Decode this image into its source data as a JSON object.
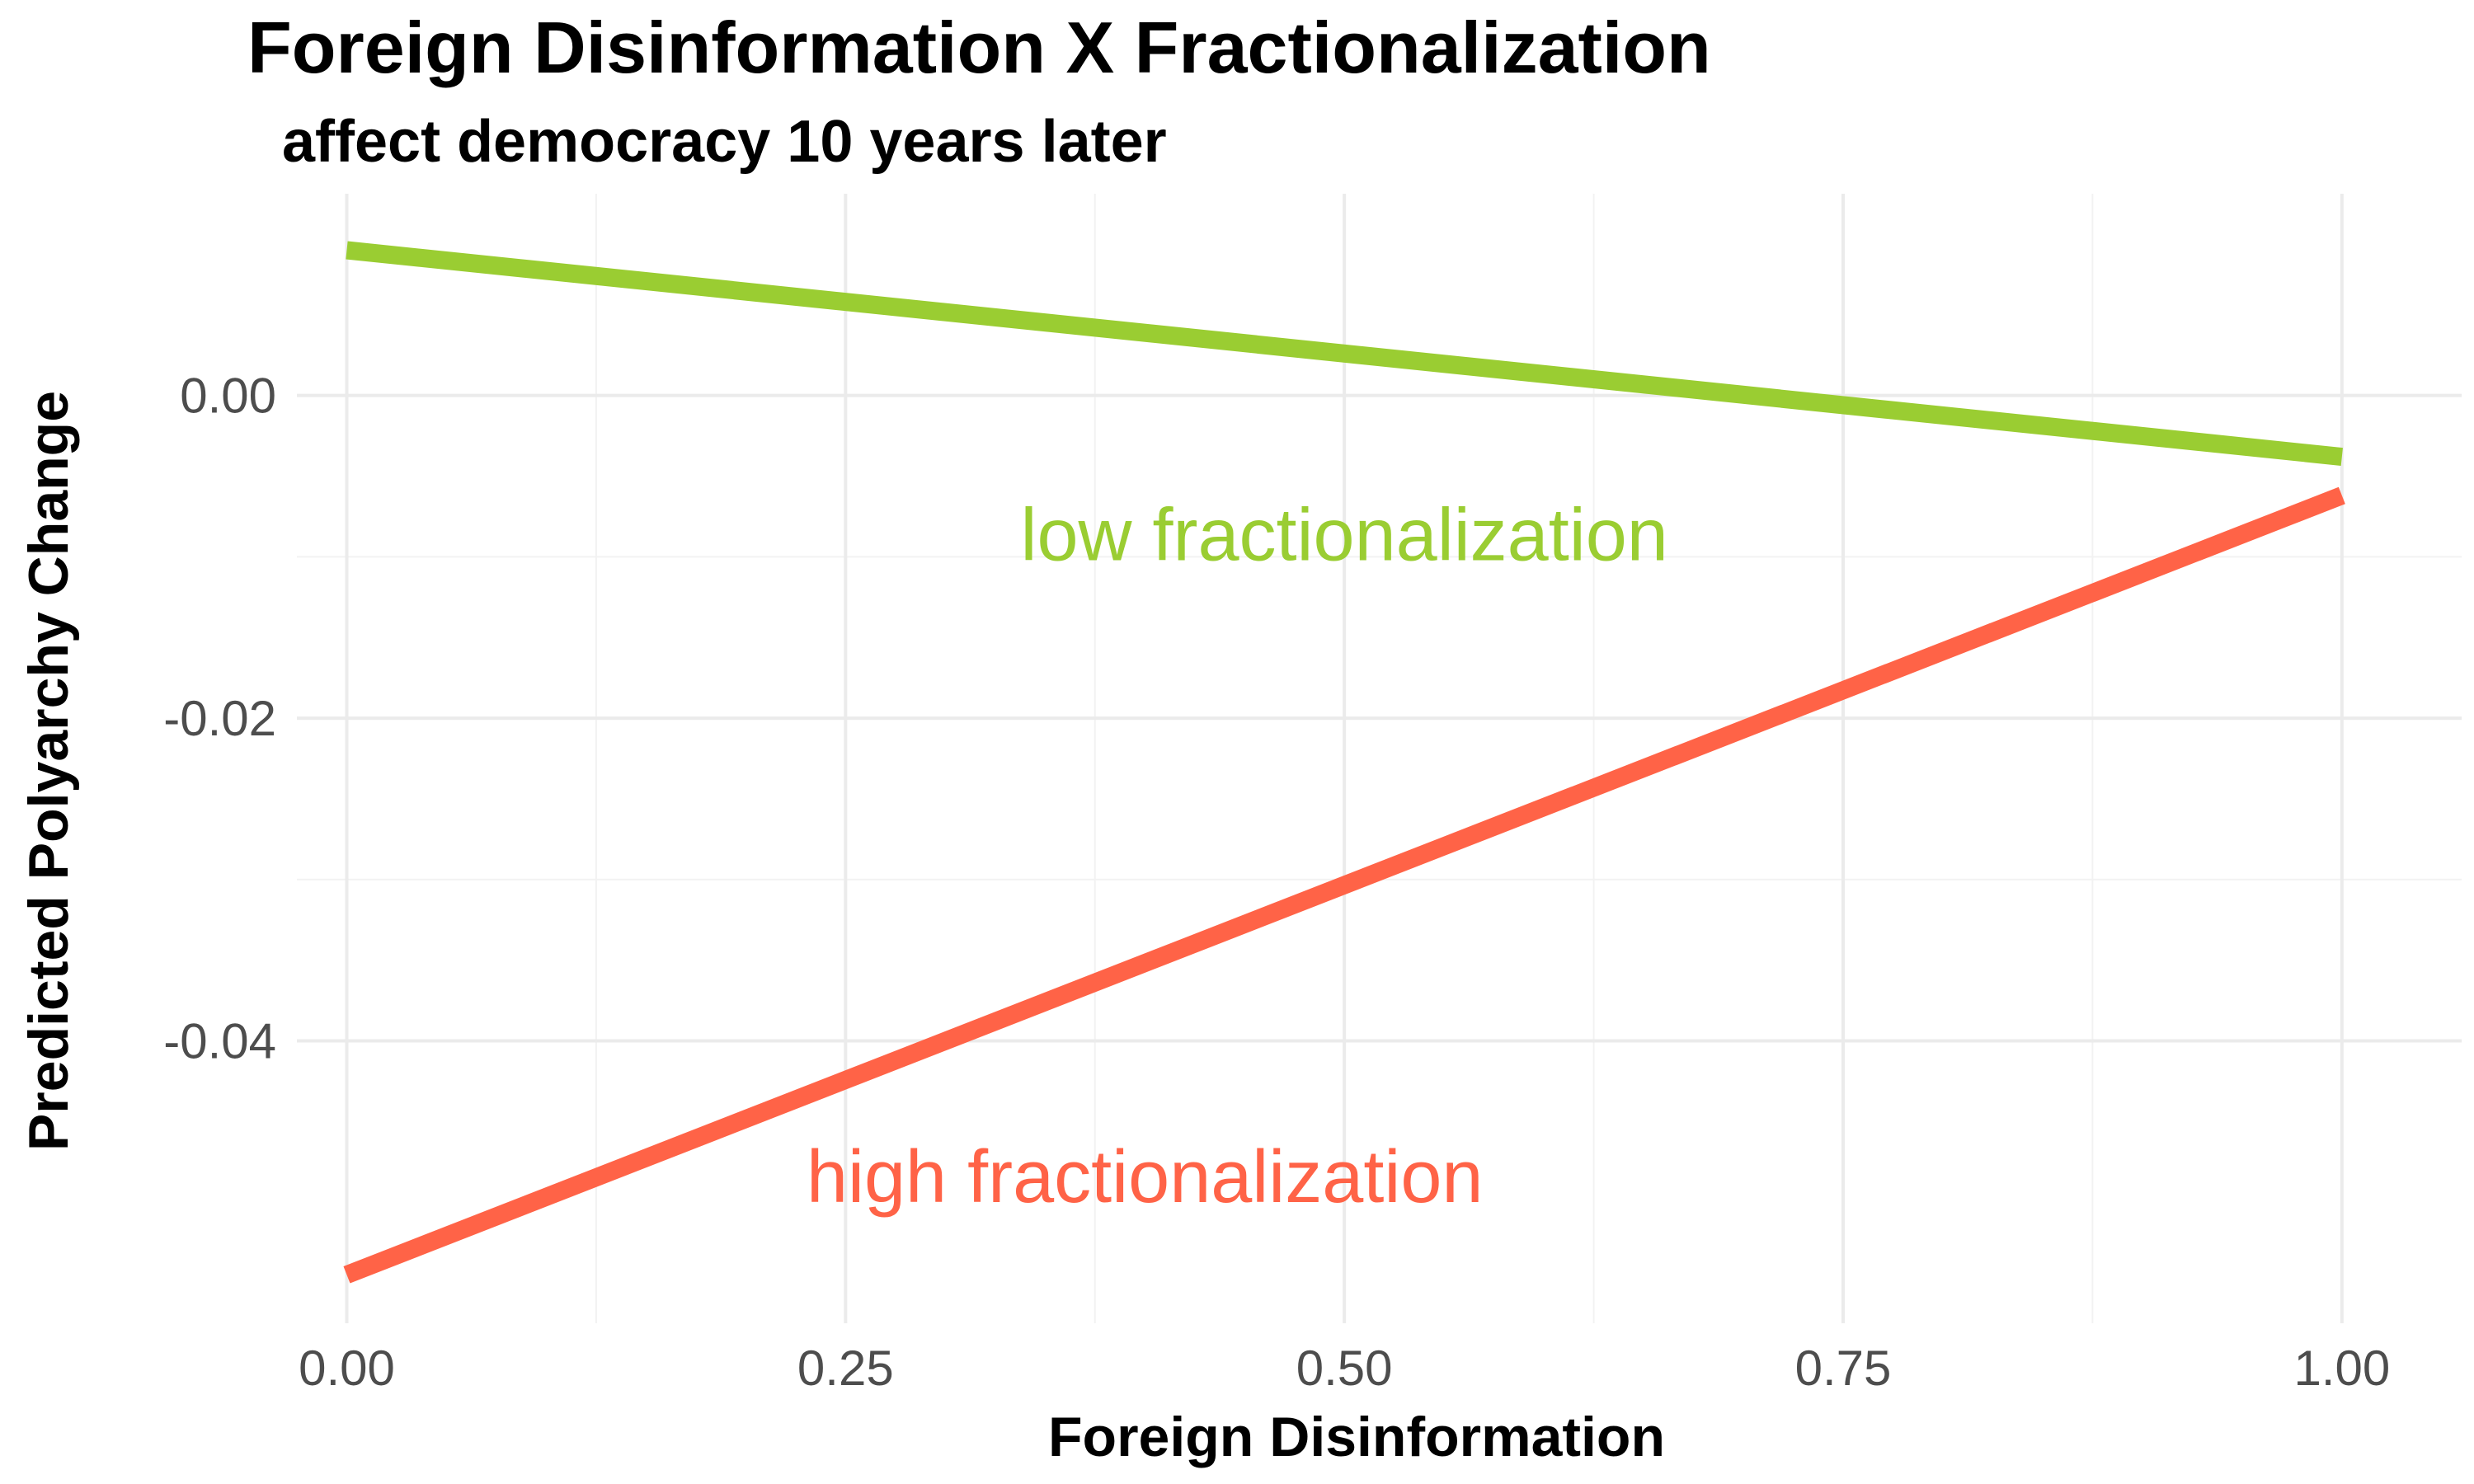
{
  "chart_data": {
    "type": "line",
    "title": "Foreign Disinformation X Fractionalization",
    "subtitle": "affect democracy 10 years later",
    "xlabel": "Foreign Disinformation",
    "ylabel": "Predicted Polyarchy Change",
    "xlim": [
      -0.025,
      1.06
    ],
    "ylim": [
      -0.0575,
      0.0125
    ],
    "x_ticks": [
      0,
      0.25,
      0.5,
      0.75,
      1
    ],
    "x_tick_labels": [
      "0.00",
      "0.25",
      "0.50",
      "0.75",
      "1.00"
    ],
    "y_ticks": [
      0,
      -0.02,
      -0.04
    ],
    "y_tick_labels": [
      "0.00",
      "-0.02",
      "-0.04"
    ],
    "grid": true,
    "legend": "none",
    "series": [
      {
        "name": "low fractionalization",
        "color": "#9ACD32",
        "x": [
          0,
          1
        ],
        "y": [
          0.009,
          -0.0038
        ]
      },
      {
        "name": "high fractionalization",
        "color": "#FF6347",
        "x": [
          0,
          1
        ],
        "y": [
          -0.0545,
          -0.0062
        ]
      }
    ],
    "annotations": [
      {
        "text": "low fractionalization",
        "x": 0.5,
        "y": -0.0102,
        "color": "#9ACD32"
      },
      {
        "text": "high fractionalization",
        "x": 0.4,
        "y": -0.05,
        "color": "#FF6347"
      }
    ]
  }
}
